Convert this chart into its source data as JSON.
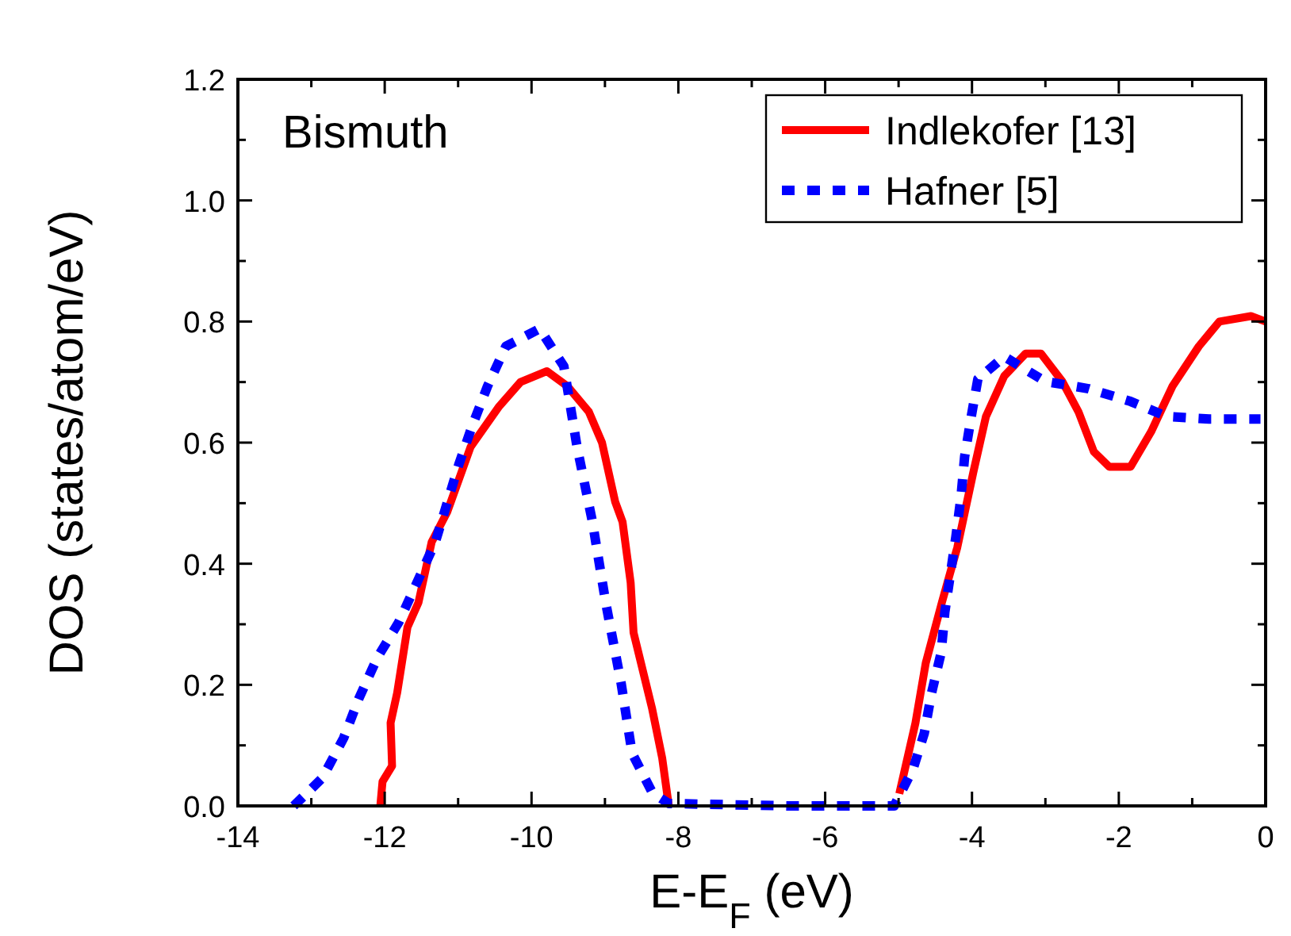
{
  "chart_data": {
    "type": "line",
    "title": "Bismuth",
    "xlabel": "E-E$_{F}$ (eV)",
    "ylabel": "DOS (states/atom/eV)",
    "xlim": [
      -14,
      0
    ],
    "ylim": [
      0,
      1.2
    ],
    "xticks": [
      -14,
      {
        "value": -13,
        "label": null
      },
      -12,
      {
        "value": -11,
        "label": null
      },
      -10,
      {
        "value": -9,
        "label": null
      },
      -8,
      {
        "value": -7,
        "label": null
      },
      -6,
      {
        "value": -5,
        "label": null
      },
      -4,
      {
        "value": -3,
        "label": null
      },
      -2,
      {
        "value": -1,
        "label": null
      },
      0
    ],
    "yticks": [
      {
        "value": 0,
        "label": "0.0"
      },
      {
        "value": 0.1,
        "label": null
      },
      {
        "value": 0.2,
        "label": "0.2"
      },
      {
        "value": 0.3,
        "label": null
      },
      {
        "value": 0.4,
        "label": "0.4"
      },
      {
        "value": 0.5,
        "label": null
      },
      {
        "value": 0.6,
        "label": "0.6"
      },
      {
        "value": 0.7,
        "label": null
      },
      {
        "value": 0.8,
        "label": "0.8"
      },
      {
        "value": 0.9,
        "label": null
      },
      {
        "value": 1.0,
        "label": "1.0"
      },
      {
        "value": 1.1,
        "label": null
      },
      {
        "value": 1.2,
        "label": "1.2"
      }
    ],
    "legend": "top right",
    "grid": false,
    "series": [
      {
        "name": "Indlekofer [13]",
        "color": "#ff0000",
        "line_style": "solid",
        "x": [
          -12.06,
          -12.03,
          -11.9,
          -11.92,
          -11.83,
          -11.69,
          -11.54,
          -11.36,
          -11.15,
          -10.83,
          -10.44,
          -10.15,
          -9.79,
          -9.51,
          -9.22,
          -9.04,
          -8.86,
          -8.76,
          -8.65,
          -8.61,
          -8.36,
          -8.22,
          -8.13,
          -5.06,
          -4.99,
          -4.77,
          -4.63,
          -4.41,
          -4.2,
          -3.98,
          -3.81,
          -3.56,
          -3.27,
          -3.06,
          -2.77,
          -2.55,
          -2.34,
          -2.13,
          -1.84,
          -1.56,
          -1.27,
          -0.91,
          -0.63,
          -0.2,
          0
        ],
        "values": [
          0,
          0.04,
          0.066,
          0.137,
          0.187,
          0.295,
          0.336,
          0.436,
          0.485,
          0.593,
          0.66,
          0.7,
          0.718,
          0.693,
          0.651,
          0.6,
          0.502,
          0.469,
          0.369,
          0.286,
          0.162,
          0.079,
          0,
          null,
          0.02,
          0.137,
          0.236,
          0.336,
          0.427,
          0.552,
          0.643,
          0.71,
          0.747,
          0.747,
          0.701,
          0.651,
          0.585,
          0.56,
          0.56,
          0.618,
          0.693,
          0.759,
          0.8,
          0.809,
          0.8
        ]
      },
      {
        "name": "Hafner [5]",
        "color": "#0000ff",
        "line_style": "dotted",
        "x": [
          -13.24,
          -12.85,
          -12.56,
          -12.35,
          -12.1,
          -11.81,
          -11.56,
          -11.31,
          -10.99,
          -10.81,
          -10.6,
          -10.35,
          -9.89,
          -9.56,
          -9.38,
          -9.17,
          -8.99,
          -8.78,
          -8.63,
          -8.35,
          -8.13,
          -6.5,
          -5.06,
          -4.8,
          -4.65,
          -4.55,
          -4.42,
          -4.37,
          -4.3,
          -4.22,
          -4.15,
          -4.1,
          -4.01,
          -3.92,
          -3.56,
          -3.0,
          -2.41,
          -1.84,
          -1.34,
          -0.77,
          -0.07
        ],
        "values": [
          0,
          0.046,
          0.112,
          0.178,
          0.245,
          0.303,
          0.369,
          0.436,
          0.564,
          0.627,
          0.693,
          0.759,
          0.788,
          0.726,
          0.593,
          0.469,
          0.336,
          0.203,
          0.087,
          0.021,
          0.004,
          0,
          0,
          0.062,
          0.12,
          0.187,
          0.253,
          0.32,
          0.378,
          0.444,
          0.51,
          0.577,
          0.643,
          0.705,
          0.742,
          0.701,
          0.689,
          0.668,
          0.643,
          0.639,
          0.639
        ]
      }
    ]
  }
}
